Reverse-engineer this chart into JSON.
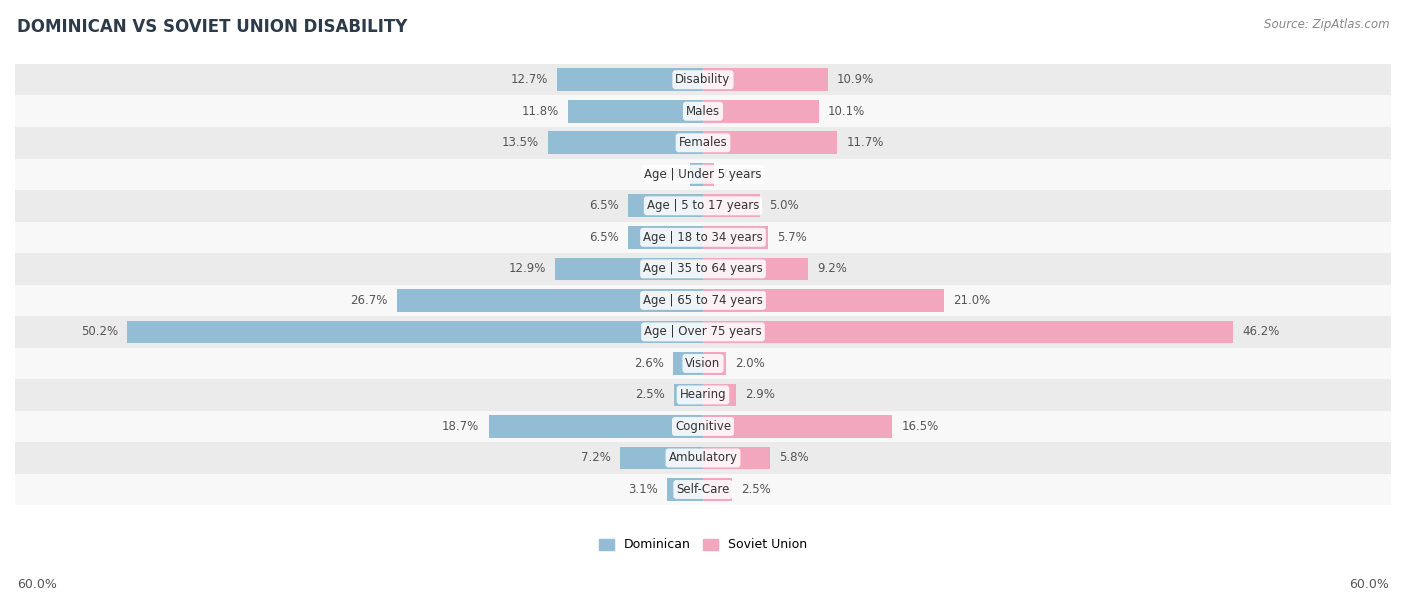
{
  "title": "DOMINICAN VS SOVIET UNION DISABILITY",
  "source": "Source: ZipAtlas.com",
  "categories": [
    "Disability",
    "Males",
    "Females",
    "Age | Under 5 years",
    "Age | 5 to 17 years",
    "Age | 18 to 34 years",
    "Age | 35 to 64 years",
    "Age | 65 to 74 years",
    "Age | Over 75 years",
    "Vision",
    "Hearing",
    "Cognitive",
    "Ambulatory",
    "Self-Care"
  ],
  "dominican": [
    12.7,
    11.8,
    13.5,
    1.1,
    6.5,
    6.5,
    12.9,
    26.7,
    50.2,
    2.6,
    2.5,
    18.7,
    7.2,
    3.1
  ],
  "soviet_union": [
    10.9,
    10.1,
    11.7,
    0.95,
    5.0,
    5.7,
    9.2,
    21.0,
    46.2,
    2.0,
    2.9,
    16.5,
    5.8,
    2.5
  ],
  "dominican_color": "#93bdd4",
  "soviet_union_color": "#f2a7bf",
  "row_bg_light": "#ebebeb",
  "row_bg_white": "#f8f8f8",
  "bar_height": 0.72,
  "xlim": 60.0,
  "title_fontsize": 12,
  "source_fontsize": 8.5,
  "label_fontsize": 8.5,
  "value_fontsize": 8.5
}
